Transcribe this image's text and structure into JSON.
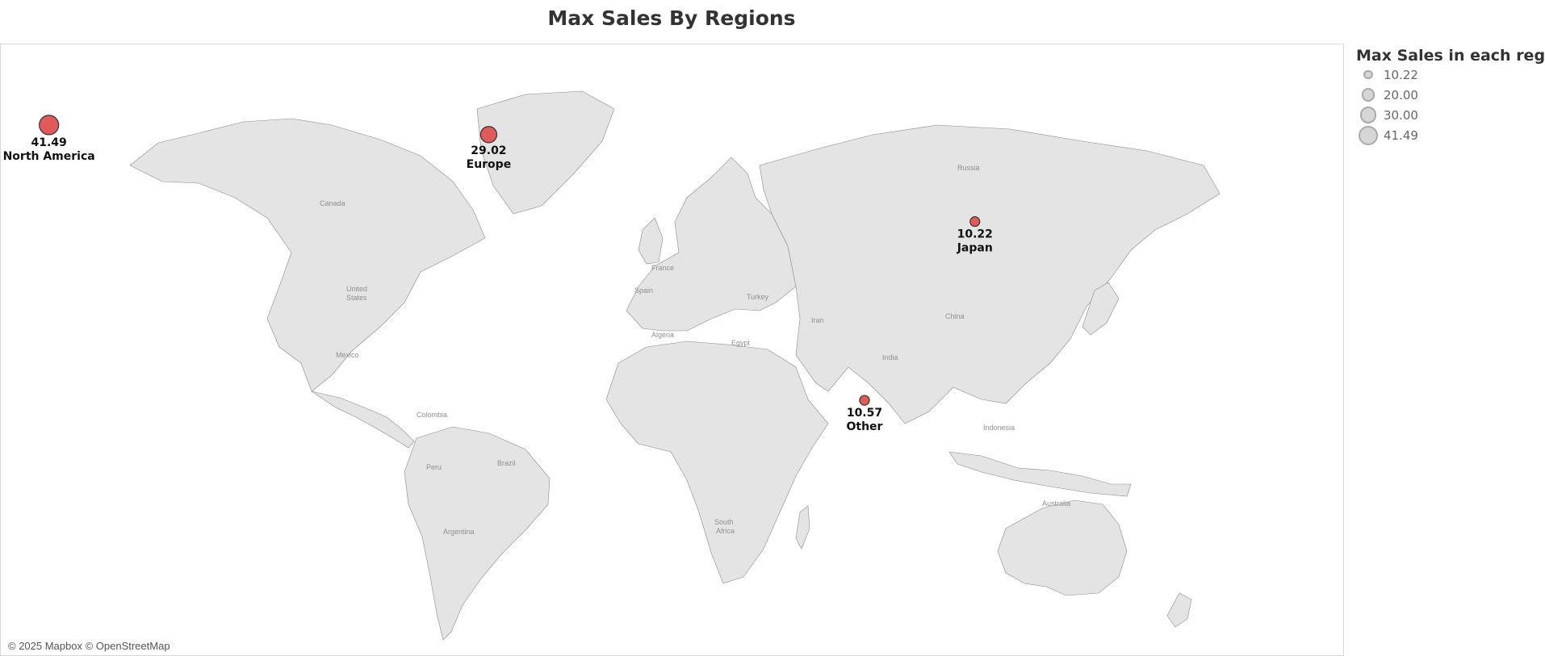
{
  "title": "Max Sales By Regions",
  "attribution": "© 2025 Mapbox © OpenStreetMap",
  "legend": {
    "title": "Max Sales in each region",
    "items": [
      "10.22",
      "20.00",
      "30.00",
      "41.49"
    ],
    "item_values": [
      10.22,
      20.0,
      30.0,
      41.49
    ]
  },
  "colors": {
    "marker_fill": "#e05a5a",
    "marker_stroke": "#333333",
    "land": "#e4e4e4",
    "water": "#ffffff",
    "border": "#8a8a8a"
  },
  "map_labels": {
    "canada": "Canada",
    "united_states": [
      "United",
      "States"
    ],
    "mexico": "Mexico",
    "colombia": "Colombia",
    "peru": "Peru",
    "brazil": "Brazil",
    "argentina": "Argentina",
    "france": "France",
    "spain": "Spain",
    "turkey": "Turkey",
    "russia": "Russia",
    "iran": "Iran",
    "india": "India",
    "china": "China",
    "indonesia": "Indonesia",
    "australia": "Australia",
    "algeria": "Algeria",
    "egypt": "Egypt",
    "south_africa": [
      "South",
      "Africa"
    ]
  },
  "chart_data": {
    "type": "map",
    "measure": "Max Sales in each region",
    "regions": [
      {
        "name": "North America",
        "value": 41.49,
        "label": "41.49",
        "lat": 53.5,
        "lon": -100.5
      },
      {
        "name": "Europe",
        "value": 29.02,
        "label": "29.02",
        "lat": 52.0,
        "lon": 13.0
      },
      {
        "name": "Japan",
        "value": 10.22,
        "label": "10.22",
        "lat": 36.0,
        "lon": 138.5
      },
      {
        "name": "Other",
        "value": 10.57,
        "label": "10.57",
        "lat": -7.5,
        "lon": 110.0
      }
    ]
  }
}
